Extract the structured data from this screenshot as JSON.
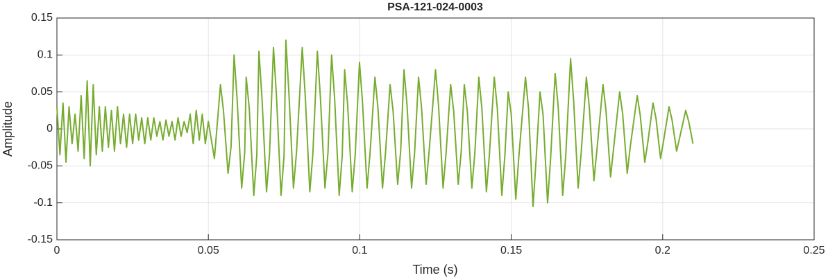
{
  "chart_data": {
    "type": "line",
    "title": "PSA-121-024-0003",
    "x_label": "Time (s)",
    "y_label": "Amplitude",
    "x": [
      0,
      0.001,
      0.002,
      0.003,
      0.004,
      0.005,
      0.006,
      0.007,
      0.008,
      0.009,
      0.01,
      0.011,
      0.012,
      0.013,
      0.014,
      0.015,
      0.016,
      0.017,
      0.018,
      0.019,
      0.02,
      0.021,
      0.022,
      0.023,
      0.024,
      0.025,
      0.026,
      0.027,
      0.028,
      0.029,
      0.03,
      0.031,
      0.032,
      0.033,
      0.034,
      0.035,
      0.036,
      0.037,
      0.038,
      0.039,
      0.04,
      0.041,
      0.042,
      0.043,
      0.044,
      0.045,
      0.046,
      0.047,
      0.048,
      0.049,
      0.05,
      0.052,
      0.054,
      0.055,
      0.0565,
      0.0575,
      0.0585,
      0.0595,
      0.061,
      0.062,
      0.0625,
      0.0635,
      0.065,
      0.066,
      0.0667,
      0.0677,
      0.0692,
      0.0702,
      0.0715,
      0.0725,
      0.074,
      0.075,
      0.0756,
      0.0766,
      0.0781,
      0.0791,
      0.081,
      0.082,
      0.0835,
      0.0845,
      0.086,
      0.087,
      0.0885,
      0.0895,
      0.0907,
      0.0917,
      0.0932,
      0.0942,
      0.095,
      0.096,
      0.0975,
      0.0985,
      0.0999,
      0.1009,
      0.1024,
      0.1034,
      0.105,
      0.106,
      0.1075,
      0.1085,
      0.11,
      0.111,
      0.1125,
      0.1135,
      0.1146,
      0.1156,
      0.1171,
      0.1181,
      0.1194,
      0.1204,
      0.1219,
      0.1229,
      0.125,
      0.126,
      0.1275,
      0.1285,
      0.13,
      0.131,
      0.1325,
      0.1335,
      0.1345,
      0.1355,
      0.137,
      0.138,
      0.1393,
      0.1403,
      0.1418,
      0.1428,
      0.1444,
      0.1454,
      0.1469,
      0.1479,
      0.149,
      0.15,
      0.1515,
      0.1525,
      0.1547,
      0.1557,
      0.1572,
      0.1582,
      0.1595,
      0.1605,
      0.162,
      0.163,
      0.1645,
      0.1655,
      0.167,
      0.168,
      0.1696,
      0.1706,
      0.1721,
      0.1731,
      0.1748,
      0.1758,
      0.1773,
      0.1783,
      0.1803,
      0.1813,
      0.1828,
      0.1838,
      0.1858,
      0.1868,
      0.1883,
      0.1893,
      0.1916,
      0.1926,
      0.1941,
      0.1951,
      0.1968,
      0.1978,
      0.1993,
      0.2003,
      0.2021,
      0.2031,
      0.2046,
      0.2056,
      0.2076,
      0.2086,
      0.21
    ],
    "series": [
      {
        "color": "#77ac30",
        "values": [
          0.03,
          -0.035,
          0.035,
          -0.045,
          0.03,
          -0.02,
          0.02,
          -0.03,
          0.045,
          -0.04,
          0.065,
          -0.05,
          0.06,
          -0.035,
          0.03,
          -0.03,
          0.03,
          -0.025,
          0.025,
          -0.03,
          0.03,
          -0.02,
          0.02,
          -0.025,
          0.02,
          -0.02,
          0.02,
          -0.015,
          0.015,
          -0.02,
          0.015,
          -0.015,
          0.015,
          -0.01,
          0.01,
          -0.015,
          0.012,
          -0.01,
          0.01,
          -0.015,
          0.015,
          -0.01,
          0.01,
          -0.005,
          0.02,
          -0.02,
          0.025,
          -0.015,
          0.02,
          -0.02,
          0.01,
          -0.04,
          0.06,
          0.024,
          -0.06,
          -0.024,
          0.1,
          0.04,
          -0.08,
          -0.032,
          0.07,
          0.028,
          -0.09,
          -0.036,
          0.105,
          0.042,
          -0.085,
          -0.034,
          0.11,
          0.044,
          -0.09,
          -0.036,
          0.12,
          0.048,
          -0.08,
          -0.032,
          0.11,
          0.044,
          -0.085,
          -0.034,
          0.105,
          0.042,
          -0.08,
          -0.032,
          0.1,
          0.04,
          -0.09,
          -0.036,
          0.08,
          0.032,
          -0.085,
          -0.034,
          0.09,
          0.036,
          -0.08,
          -0.032,
          0.07,
          0.028,
          -0.08,
          -0.032,
          0.06,
          0.024,
          -0.075,
          -0.03,
          0.08,
          0.032,
          -0.08,
          -0.032,
          0.07,
          0.028,
          -0.075,
          -0.03,
          0.08,
          0.032,
          -0.08,
          -0.032,
          0.06,
          0.024,
          -0.075,
          -0.03,
          0.06,
          0.024,
          -0.08,
          -0.032,
          0.07,
          0.028,
          -0.085,
          -0.034,
          0.07,
          0.028,
          -0.09,
          -0.036,
          0.05,
          0.02,
          -0.095,
          -0.038,
          0.07,
          0.028,
          -0.105,
          -0.042,
          0.05,
          0.02,
          -0.1,
          -0.04,
          0.075,
          0.03,
          -0.09,
          -0.036,
          0.095,
          0.038,
          -0.08,
          -0.032,
          0.07,
          0.028,
          -0.07,
          -0.028,
          0.06,
          0.024,
          -0.065,
          -0.026,
          0.05,
          0.02,
          -0.06,
          -0.024,
          0.045,
          0.018,
          -0.045,
          -0.018,
          0.035,
          0.014,
          -0.04,
          -0.016,
          0.03,
          0.012,
          -0.03,
          -0.012,
          0.025,
          0.01,
          -0.02
        ]
      }
    ],
    "xlim": [
      0,
      0.25
    ],
    "xticks": [
      0,
      0.05,
      0.1,
      0.15,
      0.2,
      0.25
    ],
    "ylim": [
      -0.15,
      0.15
    ],
    "yticks": [
      -0.15,
      -0.1,
      -0.05,
      0,
      0.05,
      0.1,
      0.15
    ],
    "grid": true
  }
}
